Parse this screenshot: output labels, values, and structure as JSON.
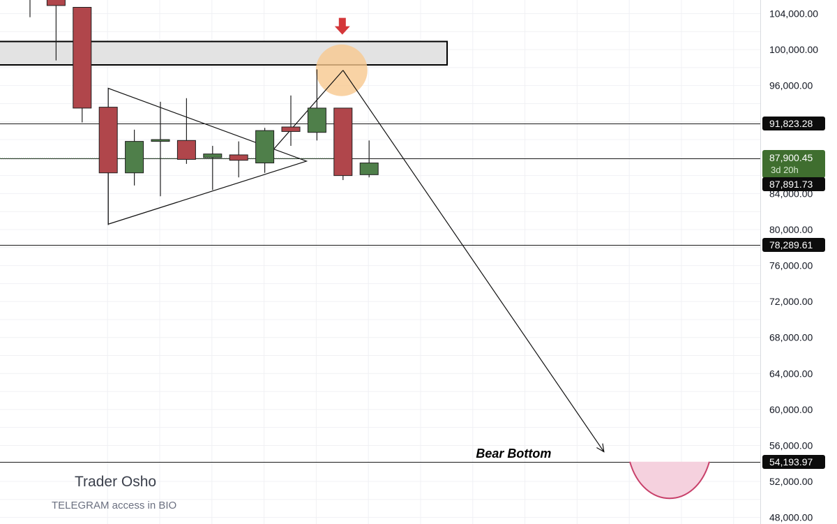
{
  "chart_data": {
    "type": "candlestick",
    "y_axis": {
      "position": "right",
      "ylim": [
        47700,
        105800
      ],
      "tick_values": [
        48000,
        52000,
        56000,
        60000,
        64000,
        68000,
        72000,
        76000,
        80000,
        84000,
        96000,
        100000,
        104000
      ],
      "tick_labels": [
        "48,000.00",
        "52,000.00",
        "56,000.00",
        "60,000.00",
        "64,000.00",
        "68,000.00",
        "72,000.00",
        "76,000.00",
        "80,000.00",
        "84,000.00",
        "96,000.00",
        "100,000.00",
        "104,000.00"
      ]
    },
    "grid": true,
    "colors": {
      "up": "#4f7f4a",
      "down": "#b0464b",
      "price_tag_current": "#3f6e2f",
      "price_tag": "#0c0c0c",
      "resistance_zone": "#e3e3e3",
      "glow": "#f7c88f",
      "arrow": "#d4373a",
      "bowl": "#f5d1de",
      "bowl_stroke": "#c8406a"
    },
    "candles": [
      {
        "open": 106000,
        "high": 106500,
        "low": 103600,
        "close": 106000,
        "dir": "none"
      },
      {
        "open": 106500,
        "high": 107000,
        "low": 98800,
        "close": 104900,
        "dir": "down"
      },
      {
        "open": 104700,
        "high": 104700,
        "low": 91900,
        "close": 93500,
        "dir": "down"
      },
      {
        "open": 93600,
        "high": 93600,
        "low": 80500,
        "close": 86300,
        "dir": "down"
      },
      {
        "open": 86300,
        "high": 91100,
        "low": 84900,
        "close": 89800,
        "dir": "up"
      },
      {
        "open": 89800,
        "high": 94200,
        "low": 83700,
        "close": 90000,
        "dir": "up"
      },
      {
        "open": 89900,
        "high": 94600,
        "low": 87300,
        "close": 87800,
        "dir": "down"
      },
      {
        "open": 88400,
        "high": 89300,
        "low": 84400,
        "close": 88000,
        "dir": "up"
      },
      {
        "open": 88300,
        "high": 89800,
        "low": 85800,
        "close": 87700,
        "dir": "down"
      },
      {
        "open": 87400,
        "high": 91300,
        "low": 86300,
        "close": 91000,
        "dir": "up"
      },
      {
        "open": 91400,
        "high": 94900,
        "low": 89300,
        "close": 90900,
        "dir": "down"
      },
      {
        "open": 90800,
        "high": 97800,
        "low": 89900,
        "close": 93500,
        "dir": "up"
      },
      {
        "open": 93500,
        "high": 93500,
        "low": 85500,
        "close": 86000,
        "dir": "down"
      },
      {
        "open": 86100,
        "high": 89900,
        "low": 85800,
        "close": 87400,
        "dir": "up"
      }
    ],
    "resistance_zone": {
      "from": 98300,
      "to": 100900
    },
    "triangle": {
      "apex_top": {
        "candle": 3,
        "price": 95700
      },
      "apex_bottom": {
        "candle": 3,
        "price": 80600
      },
      "tip": {
        "candle": 10.6,
        "price": 87600
      }
    },
    "rising_wedge_line": {
      "from": {
        "candle": 9,
        "price": 87800
      },
      "to": {
        "candle": 12,
        "price": 97700
      }
    },
    "projection": {
      "from": {
        "candle": 12,
        "price": 97700
      },
      "to": {
        "candle": 22,
        "price": 55300
      }
    },
    "horizontal_levels": [
      {
        "price": 91823.28,
        "label": "91,823.28"
      },
      {
        "price": 87891.73,
        "label": "87,891.73"
      },
      {
        "price": 78289.61,
        "label": "78,289.61"
      },
      {
        "price": 54193.97,
        "label": "54,193.97"
      }
    ],
    "current_price": {
      "price": 87900.45,
      "label": "87,900.45",
      "countdown": "3d 20h"
    },
    "annotations": [
      {
        "text": "Bear Bottom",
        "candle": 18.7,
        "price": 55100
      }
    ],
    "glow_marker": {
      "candle": 12,
      "price": 97700
    },
    "down_arrow": {
      "candle": 12,
      "price": 102600
    }
  },
  "watermark": {
    "title": "Trader Osho",
    "subtitle": "TELEGRAM access in BIO"
  }
}
